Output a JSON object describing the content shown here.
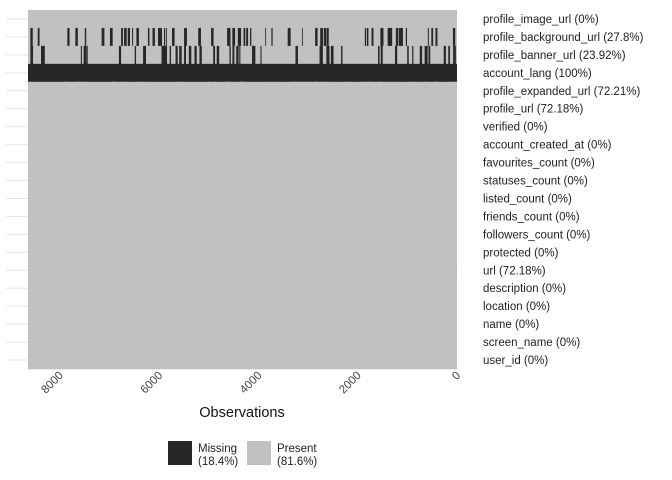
{
  "chart_data": {
    "type": "heatmap",
    "title": "",
    "xlabel": "Observations",
    "xlim": [
      8640,
      0
    ],
    "x_ticks": [
      8000,
      6000,
      4000,
      2000,
      0
    ],
    "x_tick_labels": [
      "8000",
      "6000",
      "4000",
      "2000",
      "0"
    ],
    "rows": [
      {
        "label": "profile_image_url (0%)",
        "missing_pct": 0
      },
      {
        "label": "profile_background_url (27.8%)",
        "missing_pct": 27.8
      },
      {
        "label": "profile_banner_url (23.92%)",
        "missing_pct": 23.92
      },
      {
        "label": "account_lang (100%)",
        "missing_pct": 100
      },
      {
        "label": "profile_expanded_url (72.21%)",
        "missing_pct": 72.21
      },
      {
        "label": "profile_url (72.18%)",
        "missing_pct": 72.18
      },
      {
        "label": "verified (0%)",
        "missing_pct": 0
      },
      {
        "label": "account_created_at (0%)",
        "missing_pct": 0
      },
      {
        "label": "favourites_count (0%)",
        "missing_pct": 0
      },
      {
        "label": "statuses_count (0%)",
        "missing_pct": 0
      },
      {
        "label": "listed_count (0%)",
        "missing_pct": 0
      },
      {
        "label": "friends_count (0%)",
        "missing_pct": 0
      },
      {
        "label": "followers_count (0%)",
        "missing_pct": 0
      },
      {
        "label": "protected (0%)",
        "missing_pct": 0
      },
      {
        "label": "url (72.18%)",
        "missing_pct": 72.18
      },
      {
        "label": "description (0%)",
        "missing_pct": 0
      },
      {
        "label": "location (0%)",
        "missing_pct": 0
      },
      {
        "label": "name (0%)",
        "missing_pct": 0
      },
      {
        "label": "screen_name (0%)",
        "missing_pct": 0
      },
      {
        "label": "user_id (0%)",
        "missing_pct": 0
      }
    ],
    "legend": {
      "placement": "bottom",
      "items": [
        {
          "label": "Missing",
          "pct": "(18.4%)",
          "color": "#272727"
        },
        {
          "label": "Present",
          "pct": "(81.6%)",
          "color": "#c1c1c1"
        }
      ]
    },
    "grid": true,
    "colors": {
      "missing": "#272727",
      "present": "#c1c1c1",
      "grid": "#e6e6e6"
    }
  }
}
